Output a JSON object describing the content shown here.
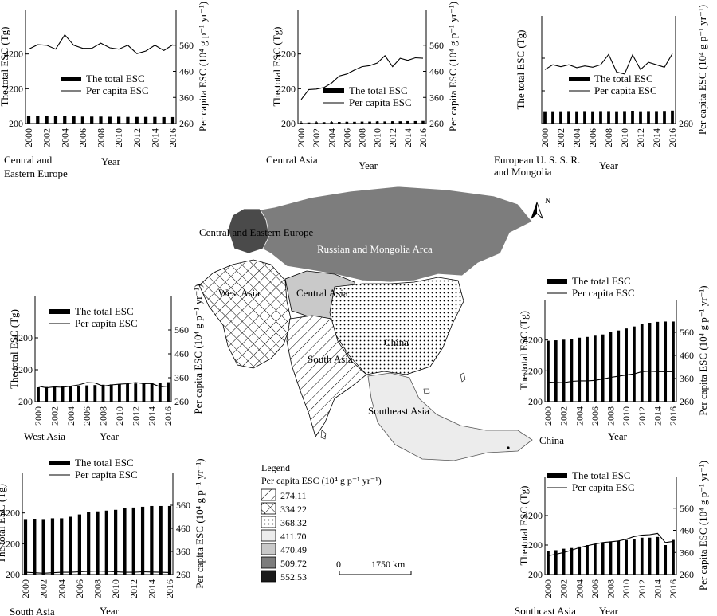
{
  "chart_data": [
    {
      "type": "bar",
      "region": "Central and Eastern Europe",
      "xlabel": "Year",
      "ylabel": "The total ESC (Tg)",
      "y2label": "Per capita ESC (10⁴ g p⁻¹ yr⁻¹)",
      "ylim": [
        200,
        6200
      ],
      "y2lim": [
        260,
        660
      ],
      "yticks": [
        200,
        2200,
        4200
      ],
      "y2ticks": [
        260,
        360,
        460,
        560
      ],
      "categories": [
        2000,
        2001,
        2002,
        2003,
        2004,
        2005,
        2006,
        2007,
        2008,
        2009,
        2010,
        2011,
        2012,
        2013,
        2014,
        2015,
        2016
      ],
      "xticks": [
        2000,
        2002,
        2004,
        2006,
        2008,
        2010,
        2012,
        2014,
        2016
      ],
      "legend": [
        "The total ESC",
        "Per capita ESC"
      ],
      "series": [
        {
          "name": "The total ESC",
          "kind": "bar",
          "axis": "left",
          "values": [
            650,
            650,
            640,
            630,
            620,
            610,
            600,
            600,
            600,
            590,
            590,
            580,
            580,
            580,
            580,
            570,
            570
          ]
        },
        {
          "name": "Per capita ESC",
          "kind": "line",
          "axis": "right",
          "values": [
            545,
            562,
            560,
            545,
            600,
            560,
            548,
            548,
            568,
            550,
            545,
            560,
            528,
            538,
            560,
            540,
            562
          ]
        }
      ]
    },
    {
      "type": "bar",
      "region": "Central Asia",
      "xlabel": "Year",
      "ylabel": "The total ESC (Tg)",
      "y2label": "Per capita ESC (10⁴ g p⁻¹ yr⁻¹)",
      "ylim": [
        200,
        6200
      ],
      "y2lim": [
        260,
        660
      ],
      "yticks": [
        200,
        2200,
        4200
      ],
      "y2ticks": [
        260,
        360,
        460,
        560
      ],
      "categories": [
        2000,
        2001,
        2002,
        2003,
        2004,
        2005,
        2006,
        2007,
        2008,
        2009,
        2010,
        2011,
        2012,
        2013,
        2014,
        2015,
        2016
      ],
      "xticks": [
        2000,
        2002,
        2004,
        2006,
        2008,
        2010,
        2012,
        2014,
        2016
      ],
      "legend": [
        "The total ESC",
        "Per capita ESC"
      ],
      "series": [
        {
          "name": "The total ESC",
          "kind": "bar",
          "axis": "left",
          "values": [
            250,
            260,
            270,
            280,
            280,
            290,
            300,
            300,
            310,
            310,
            320,
            320,
            330,
            330,
            340,
            340,
            350
          ]
        },
        {
          "name": "Per capita ESC",
          "kind": "line",
          "axis": "right",
          "values": [
            352,
            390,
            392,
            398,
            415,
            442,
            450,
            465,
            478,
            482,
            492,
            520,
            478,
            510,
            502,
            512,
            510
          ]
        }
      ]
    },
    {
      "type": "bar",
      "region": "European U. S. S. R. and Mongolia",
      "xlabel": "Year",
      "ylabel": "The total ESC (Tg)",
      "y2label": "Per capita ESC (10⁴ g p⁻¹ yr⁻¹)",
      "ylim": [
        200,
        6200
      ],
      "y2lim": [
        260,
        660
      ],
      "yticks": [
        200,
        2200,
        4200
      ],
      "y2ticks": [
        260
      ],
      "show_left_tick_labels": false,
      "categories": [
        2000,
        2001,
        2002,
        2003,
        2004,
        2005,
        2006,
        2007,
        2008,
        2009,
        2010,
        2011,
        2012,
        2013,
        2014,
        2015,
        2016
      ],
      "xticks": [
        2000,
        2002,
        2004,
        2006,
        2008,
        2010,
        2012,
        2014,
        2016
      ],
      "legend": [
        "The total ESC",
        "Per capita ESC"
      ],
      "series": [
        {
          "name": "The total ESC",
          "kind": "bar",
          "axis": "left",
          "values": [
            950,
            950,
            950,
            960,
            950,
            960,
            950,
            960,
            960,
            950,
            960,
            980,
            950,
            960,
            960,
            970,
            990
          ]
        },
        {
          "name": "Per capita ESC",
          "kind": "line",
          "axis": "right",
          "values": [
            480,
            500,
            492,
            500,
            488,
            495,
            490,
            500,
            542,
            470,
            462,
            540,
            480,
            510,
            500,
            490,
            545
          ]
        }
      ]
    },
    {
      "type": "bar",
      "region": "West Asia",
      "xlabel": "Year",
      "ylabel": "The total ESC (Tg)",
      "y2label": "Per capita ESC (10⁴ g p⁻¹ yr⁻¹)",
      "ylim": [
        200,
        6200
      ],
      "y2lim": [
        260,
        660
      ],
      "yticks": [
        200,
        2200,
        4200
      ],
      "y2ticks": [
        260,
        360,
        460,
        560
      ],
      "categories": [
        2000,
        2001,
        2002,
        2003,
        2004,
        2005,
        2006,
        2007,
        2008,
        2009,
        2010,
        2011,
        2012,
        2013,
        2014,
        2015,
        2016
      ],
      "xticks": [
        2000,
        2002,
        2004,
        2006,
        2008,
        2010,
        2012,
        2014,
        2016
      ],
      "legend": [
        "The total ESC",
        "Per capita ESC"
      ],
      "series": [
        {
          "name": "The total ESC",
          "kind": "bar",
          "axis": "left",
          "values": [
            1100,
            1120,
            1140,
            1160,
            1180,
            1200,
            1220,
            1240,
            1260,
            1280,
            1300,
            1320,
            1340,
            1360,
            1380,
            1400,
            1420
          ]
        },
        {
          "name": "Per capita ESC",
          "kind": "line",
          "axis": "right",
          "values": [
            325,
            318,
            322,
            320,
            325,
            330,
            340,
            338,
            325,
            330,
            333,
            335,
            340,
            335,
            336,
            322,
            325
          ]
        }
      ]
    },
    {
      "type": "bar",
      "region": "China",
      "xlabel": "Year",
      "ylabel": "The total ESC (Tg)",
      "y2label": "Per capita ESC (10⁴ g p⁻¹ yr⁻¹)",
      "ylim": [
        200,
        6200
      ],
      "y2lim": [
        260,
        660
      ],
      "yticks": [
        200,
        2200,
        4200
      ],
      "y2ticks": [
        260,
        360,
        460,
        560
      ],
      "categories": [
        2000,
        2001,
        2002,
        2003,
        2004,
        2005,
        2006,
        2007,
        2008,
        2009,
        2010,
        2011,
        2012,
        2013,
        2014,
        2015,
        2016
      ],
      "xticks": [
        2000,
        2002,
        2004,
        2006,
        2008,
        2010,
        2012,
        2014,
        2016
      ],
      "legend": [
        "The total ESC",
        "Per capita ESC"
      ],
      "series": [
        {
          "name": "The total ESC",
          "kind": "bar",
          "axis": "left",
          "values": [
            4150,
            4180,
            4220,
            4280,
            4350,
            4400,
            4480,
            4560,
            4720,
            4820,
            4950,
            5080,
            5220,
            5320,
            5380,
            5400,
            5400
          ]
        },
        {
          "name": "Per capita ESC",
          "kind": "line",
          "axis": "right",
          "values": [
            345,
            343,
            342,
            348,
            350,
            350,
            352,
            358,
            365,
            370,
            375,
            380,
            390,
            392,
            390,
            390,
            390
          ]
        }
      ]
    },
    {
      "type": "bar",
      "region": "South Asia",
      "xlabel": "Year",
      "ylabel": "The total ESC (Tg)",
      "y2label": "Per capita ESC (10⁴ g p⁻¹ yr⁻¹)",
      "ylim": [
        200,
        6200
      ],
      "y2lim": [
        260,
        660
      ],
      "yticks": [
        200,
        2200,
        4200
      ],
      "y2ticks": [
        260,
        360,
        460,
        560
      ],
      "categories": [
        2000,
        2001,
        2002,
        2003,
        2004,
        2005,
        2006,
        2007,
        2008,
        2009,
        2010,
        2011,
        2012,
        2013,
        2014,
        2015,
        2016
      ],
      "xticks": [
        2000,
        2002,
        2004,
        2006,
        2008,
        2010,
        2012,
        2014,
        2016
      ],
      "legend": [
        "The total ESC",
        "Per capita ESC"
      ],
      "series": [
        {
          "name": "The total ESC",
          "kind": "bar",
          "axis": "left",
          "values": [
            3800,
            3820,
            3800,
            3850,
            3850,
            3950,
            4100,
            4250,
            4300,
            4350,
            4400,
            4500,
            4550,
            4600,
            4650,
            4650,
            4650
          ]
        },
        {
          "name": "Per capita ESC",
          "kind": "line",
          "axis": "right",
          "values": [
            270,
            268,
            266,
            268,
            270,
            270,
            272,
            274,
            275,
            274,
            272,
            270,
            270,
            272,
            271,
            270,
            269
          ]
        }
      ]
    },
    {
      "type": "bar",
      "region": "Southeast Asia",
      "xlabel": "Year",
      "ylabel": "The total ESC (Tg)",
      "y2label": "Per capita ESC (10⁴ g p⁻¹ yr⁻¹)",
      "ylim": [
        200,
        6200
      ],
      "y2lim": [
        260,
        660
      ],
      "yticks": [
        200,
        2200,
        4200
      ],
      "y2ticks": [
        260,
        360,
        460,
        560
      ],
      "categories": [
        2000,
        2001,
        2002,
        2003,
        2004,
        2005,
        2006,
        2007,
        2008,
        2009,
        2010,
        2011,
        2012,
        2013,
        2014,
        2015,
        2016
      ],
      "xticks": [
        2000,
        2002,
        2004,
        2006,
        2008,
        2010,
        2012,
        2014,
        2016
      ],
      "legend": [
        "The total ESC",
        "Per capita ESC"
      ],
      "series": [
        {
          "name": "The total ESC",
          "kind": "bar",
          "axis": "left",
          "values": [
            1800,
            1850,
            1950,
            2000,
            2100,
            2200,
            2250,
            2350,
            2450,
            2500,
            2550,
            2600,
            2700,
            2700,
            2750,
            2200,
            2550
          ]
        },
        {
          "name": "Per capita ESC",
          "kind": "line",
          "axis": "right",
          "values": [
            345,
            352,
            360,
            370,
            382,
            390,
            398,
            405,
            408,
            412,
            420,
            432,
            438,
            440,
            446,
            405,
            410
          ]
        }
      ]
    }
  ],
  "region_captions": [
    [
      "Central and",
      "Eastern Europe"
    ],
    [
      "Central Asia"
    ],
    [
      "European U. S. S. R.",
      "and Mongolia"
    ],
    [
      "West Asia"
    ],
    [
      "China"
    ],
    [
      "South Asia"
    ],
    [
      "Southcast Asia"
    ]
  ],
  "map": {
    "region_labels": {
      "central_eastern_europe": "Central and Eastern Europe",
      "russia_mongolia": "Russian and Mongolia Arca",
      "west_asia": "West Asia",
      "central_asia": "Central Asia",
      "china": "China",
      "south_asia": "South Asia",
      "southeast_asia": "Southeast Asia"
    },
    "north_arrow": "N",
    "legend_title": "Legend",
    "legend_subtitle": "Per capita ESC (10⁴ g p⁻¹ yr⁻¹)",
    "legend_items": [
      {
        "label": "274.11",
        "pattern": "diagonal-hatch"
      },
      {
        "label": "334.22",
        "pattern": "cross-hatch"
      },
      {
        "label": "368.32",
        "pattern": "dots"
      },
      {
        "label": "411.70",
        "fill": "#ececec"
      },
      {
        "label": "470.49",
        "fill": "#c9c9c9"
      },
      {
        "label": "509.72",
        "fill": "#7d7d7d"
      },
      {
        "label": "552.53",
        "fill": "#1a1a1a"
      }
    ],
    "scale_zero": "0",
    "scale_label": "1750 km",
    "colors": {
      "russia": "#7d7d7d",
      "cee": "#4a4a4a",
      "central_asia": "#c9c9c9",
      "sea": "#ececec"
    }
  }
}
